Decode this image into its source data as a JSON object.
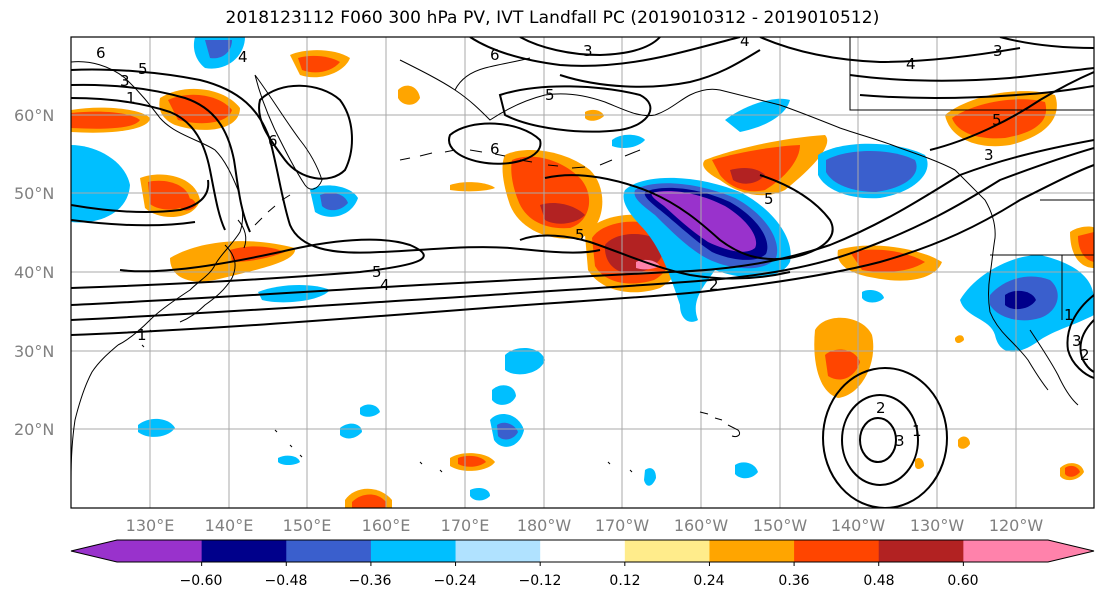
{
  "title": "2018123112 F060 300 hPa PV, IVT Landfall PC (2019010312 - 2019010512)",
  "map": {
    "lat_labels": [
      "60°N",
      "50°N",
      "40°N",
      "30°N",
      "20°N"
    ],
    "lon_labels": [
      "130°E",
      "140°E",
      "150°E",
      "160°E",
      "170°E",
      "180°W",
      "170°W",
      "160°W",
      "150°W",
      "140°W",
      "130°W",
      "120°W"
    ],
    "contour_labels": [
      "6",
      "4",
      "5",
      "3",
      "1",
      "6",
      "3",
      "6",
      "5",
      "6",
      "5",
      "4",
      "3",
      "4",
      "5",
      "3",
      "5",
      "5",
      "4",
      "1",
      "2",
      "2",
      "1",
      "3",
      "1",
      "2",
      "3"
    ]
  },
  "colorbar": {
    "colors": [
      "#9932cc",
      "#00008b",
      "#3a5fcd",
      "#00bfff",
      "#b0e2ff",
      "#ffffff",
      "#ffec8b",
      "#ffa500",
      "#ff4500",
      "#b22222",
      "#ff82ab"
    ],
    "tick_labels": [
      "−0.60",
      "−0.48",
      "−0.36",
      "−0.24",
      "−0.12",
      "0.12",
      "0.24",
      "0.36",
      "0.48",
      "0.60"
    ]
  }
}
